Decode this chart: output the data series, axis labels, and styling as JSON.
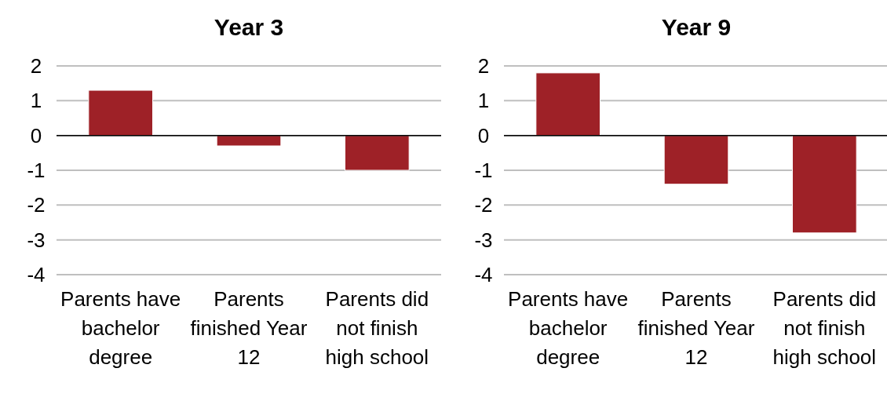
{
  "chart_data": [
    {
      "type": "bar",
      "title": "Year 3",
      "categories": [
        "Parents have bachelor degree",
        "Parents finished Year 12",
        "Parents did not finish high school"
      ],
      "values": [
        1.3,
        -0.3,
        -1.0
      ],
      "color": "#9e2127",
      "ylim": [
        -4,
        2
      ],
      "yticks": [
        -4,
        -3,
        -2,
        -1,
        0,
        1,
        2
      ],
      "grid": "y"
    },
    {
      "type": "bar",
      "title": "Year 9",
      "categories": [
        "Parents have bachelor degree",
        "Parents finished Year 12",
        "Parents did not finish high school"
      ],
      "values": [
        1.8,
        -1.4,
        -2.8
      ],
      "color": "#9e2127",
      "ylim": [
        -4,
        2
      ],
      "yticks": [
        -4,
        -3,
        -2,
        -1,
        0,
        1,
        2
      ],
      "grid": "y"
    }
  ]
}
